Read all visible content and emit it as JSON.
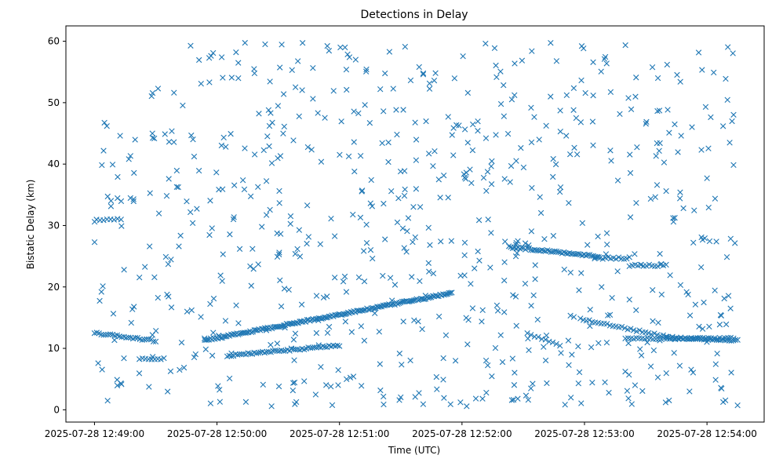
{
  "chart_data": {
    "type": "scatter",
    "title": "Detections in Delay",
    "xlabel": "Time (UTC)",
    "ylabel": "Bistatic Delay (km)",
    "marker": "x",
    "color": "#1f77b4",
    "grid": false,
    "x_ticks": [
      "2025-07-28 12:49:00",
      "2025-07-28 12:50:00",
      "2025-07-28 12:51:00",
      "2025-07-28 12:52:00",
      "2025-07-28 12:53:00",
      "2025-07-28 12:54:00"
    ],
    "y_ticks": [
      0,
      10,
      20,
      30,
      40,
      50,
      60
    ],
    "xlim": [
      "2025-07-28 12:48:46",
      "2025-07-28 12:54:28"
    ],
    "ylim": [
      -2,
      62.5
    ],
    "tracks": [
      {
        "start": "2025-07-28 12:49:00",
        "end": "2025-07-28 12:49:30",
        "delay_start": 12.5,
        "delay_end": 11.2,
        "count": 28
      },
      {
        "start": "2025-07-28 12:49:22",
        "end": "2025-07-28 12:49:34",
        "delay_start": 8.3,
        "delay_end": 8.3,
        "count": 9
      },
      {
        "start": "2025-07-28 12:49:54",
        "end": "2025-07-28 12:51:55",
        "delay_start": 11.3,
        "delay_end": 19.0,
        "count": 170
      },
      {
        "start": "2025-07-28 12:50:05",
        "end": "2025-07-28 12:51:00",
        "delay_start": 8.8,
        "delay_end": 10.5,
        "count": 55
      },
      {
        "start": "2025-07-28 12:49:01",
        "end": "2025-07-28 12:49:13",
        "delay_start": 31.0,
        "delay_end": 31.0,
        "count": 8
      },
      {
        "start": "2025-07-28 12:52:23",
        "end": "2025-07-28 12:53:07",
        "delay_start": 26.5,
        "delay_end": 25.0,
        "count": 50
      },
      {
        "start": "2025-07-28 12:53:05",
        "end": "2025-07-28 12:53:22",
        "delay_start": 24.7,
        "delay_end": 24.7,
        "count": 14
      },
      {
        "start": "2025-07-28 12:53:22",
        "end": "2025-07-28 12:53:40",
        "delay_start": 23.5,
        "delay_end": 23.5,
        "count": 14
      },
      {
        "start": "2025-07-28 12:53:40",
        "end": "2025-07-28 12:54:15",
        "delay_start": 11.8,
        "delay_end": 11.3,
        "count": 35
      },
      {
        "start": "2025-07-28 12:52:58",
        "end": "2025-07-28 12:53:40",
        "delay_start": 14.8,
        "delay_end": 11.9,
        "count": 30
      },
      {
        "start": "2025-07-28 12:53:20",
        "end": "2025-07-28 12:54:13",
        "delay_start": 11.6,
        "delay_end": 11.6,
        "count": 40
      },
      {
        "start": "2025-07-28 12:52:32",
        "end": "2025-07-28 12:52:48",
        "delay_start": 12.4,
        "delay_end": 10.4,
        "count": 10
      }
    ],
    "clutter": {
      "start": "2025-07-28 12:49:00",
      "end": "2025-07-28 12:54:15",
      "delay_min": 0.5,
      "delay_max": 59.8,
      "count": 720
    }
  }
}
